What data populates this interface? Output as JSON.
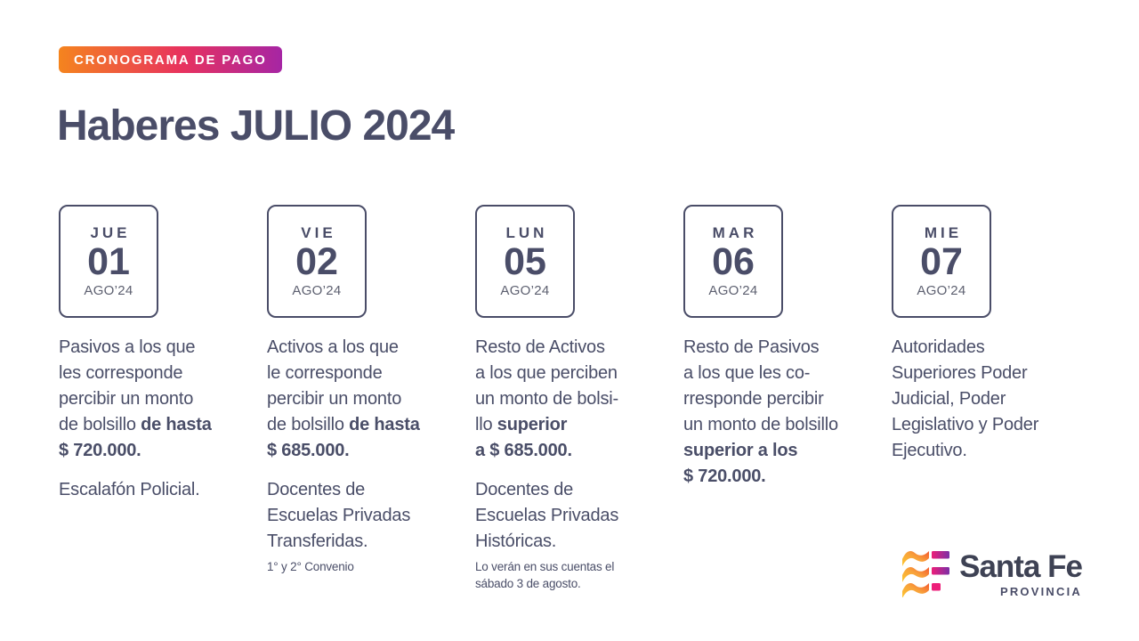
{
  "badge": {
    "label": "CRONOGRAMA DE PAGO"
  },
  "title": "Haberes JULIO 2024",
  "colors": {
    "accent_gradient": [
      "#F5841E",
      "#E8325E",
      "#A625A4"
    ],
    "navy": "#4A4D68",
    "muted_gray": "#5D6070",
    "logo_orange": "#F8A13B",
    "logo_yellow": "#FDC830",
    "logo_pink": "#ED1E79",
    "logo_purple": "#7B2FA6"
  },
  "schedule": [
    {
      "day": "JUE",
      "date": "01",
      "month": "AGO’24",
      "paragraphs": [
        {
          "lines": [
            [
              {
                "t": "Pasivos a los que"
              }
            ],
            [
              {
                "t": "les corresponde"
              }
            ],
            [
              {
                "t": "percibir un monto"
              }
            ],
            [
              {
                "t": "de bolsillo "
              },
              {
                "t": "de hasta",
                "b": 1
              }
            ],
            [
              {
                "t": "$ 720.000.",
                "b": 1
              }
            ]
          ]
        },
        {
          "lines": [
            [
              {
                "t": "Escalafón Policial."
              }
            ]
          ]
        }
      ]
    },
    {
      "day": "VIE",
      "date": "02",
      "month": "AGO’24",
      "paragraphs": [
        {
          "lines": [
            [
              {
                "t": "Activos a los que"
              }
            ],
            [
              {
                "t": "le corresponde"
              }
            ],
            [
              {
                "t": "percibir un monto"
              }
            ],
            [
              {
                "t": "de bolsillo "
              },
              {
                "t": "de hasta",
                "b": 1
              }
            ],
            [
              {
                "t": "$ 685.000.",
                "b": 1
              }
            ]
          ]
        },
        {
          "lines": [
            [
              {
                "t": "Docentes de"
              }
            ],
            [
              {
                "t": "Escuelas Privadas"
              }
            ],
            [
              {
                "t": "Transferidas."
              }
            ]
          ]
        },
        {
          "small": 1,
          "lines": [
            [
              {
                "t": "1° y 2° Convenio"
              }
            ]
          ]
        }
      ]
    },
    {
      "day": "LUN",
      "date": "05",
      "month": "AGO’24",
      "paragraphs": [
        {
          "lines": [
            [
              {
                "t": "Resto de Activos"
              }
            ],
            [
              {
                "t": "a los que perciben"
              }
            ],
            [
              {
                "t": "un monto de bolsi-"
              }
            ],
            [
              {
                "t": "llo "
              },
              {
                "t": "superior",
                "b": 1
              }
            ],
            [
              {
                "t": "a $ 685.000.",
                "b": 1
              }
            ]
          ]
        },
        {
          "lines": [
            [
              {
                "t": "Docentes de"
              }
            ],
            [
              {
                "t": "Escuelas Privadas"
              }
            ],
            [
              {
                "t": "Históricas."
              }
            ]
          ]
        },
        {
          "small": 1,
          "lines": [
            [
              {
                "t": "Lo verán en sus cuentas el"
              }
            ],
            [
              {
                "t": "sábado 3 de agosto."
              }
            ]
          ]
        }
      ]
    },
    {
      "day": "MAR",
      "date": "06",
      "month": "AGO’24",
      "paragraphs": [
        {
          "lines": [
            [
              {
                "t": "Resto de Pasivos"
              }
            ],
            [
              {
                "t": "a los que les co-"
              }
            ],
            [
              {
                "t": "rresponde percibir"
              }
            ],
            [
              {
                "t": "un monto de bolsillo"
              }
            ],
            [
              {
                "t": "superior a los",
                "b": 1
              }
            ],
            [
              {
                "t": "$ 720.000.",
                "b": 1
              }
            ]
          ]
        }
      ]
    },
    {
      "day": "MIE",
      "date": "07",
      "month": "AGO’24",
      "paragraphs": [
        {
          "lines": [
            [
              {
                "t": "Autoridades"
              }
            ],
            [
              {
                "t": "Superiores Poder"
              }
            ],
            [
              {
                "t": "Judicial, Poder"
              }
            ],
            [
              {
                "t": "Legislativo y Poder"
              }
            ],
            [
              {
                "t": "Ejecutivo."
              }
            ]
          ]
        }
      ]
    }
  ],
  "logo": {
    "brand": "Santa Fe",
    "subtitle": "PROVINCIA"
  }
}
